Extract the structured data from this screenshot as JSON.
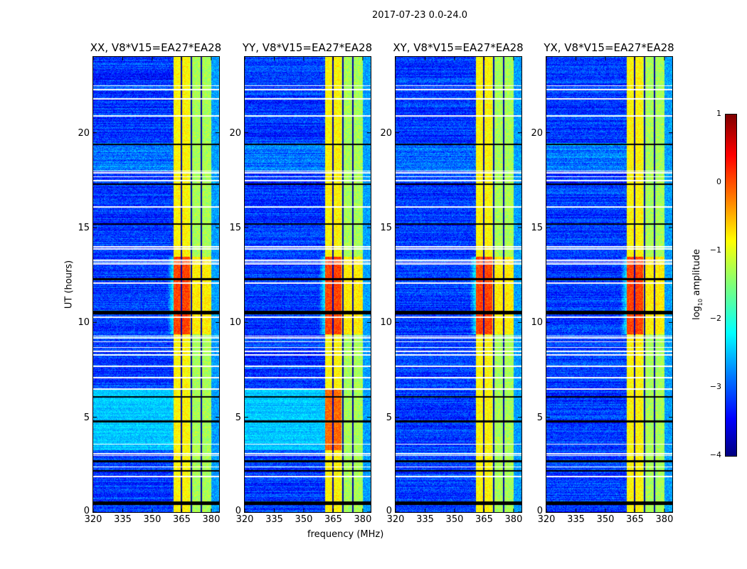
{
  "suptitle": "2017-07-23 0.0-24.0",
  "chart_data": {
    "type": "heatmap",
    "xlabel": "frequency (MHz)",
    "ylabel": "UT (hours)",
    "xlim": [
      320,
      384
    ],
    "ylim": [
      0,
      24
    ],
    "xticks": [
      "320",
      "335",
      "350",
      "365",
      "380"
    ],
    "xtick_values": [
      320,
      335,
      350,
      365,
      380
    ],
    "yticks": [
      "0",
      "5",
      "10",
      "15",
      "20"
    ],
    "ytick_values": [
      0,
      5,
      10,
      15,
      20
    ],
    "panels": [
      {
        "title": "XX, V8*V15=EA27*EA28",
        "cross_pol": false
      },
      {
        "title": "YY, V8*V15=EA27*EA28",
        "cross_pol": false
      },
      {
        "title": "XY, V8*V15=EA27*EA28",
        "cross_pol": true
      },
      {
        "title": "YX, V8*V15=EA27*EA28",
        "cross_pol": true
      }
    ],
    "rfi_band_mhz": [
      360.5,
      380
    ],
    "rfi_gaps_mhz": [
      364.7,
      369.7,
      374.8
    ],
    "strong_rfi_hours": [
      9.4,
      13.5
    ],
    "flagged_white_hours": [
      22.5,
      22.3,
      21.8,
      20.9,
      18.0,
      17.9,
      17.7,
      17.5,
      16.1,
      14.0,
      13.9,
      13.3,
      13.2,
      13.1,
      12.1,
      10.3,
      9.3,
      9.2,
      9.0,
      8.7,
      8.5,
      8.3,
      7.7,
      7.1,
      6.5,
      3.6,
      3.1,
      3.0,
      2.4,
      1.9
    ],
    "zero_black_hours": [
      19.4,
      17.3,
      15.2,
      12.3,
      10.6,
      10.5,
      6.1,
      4.8,
      2.7,
      2.2,
      0.55,
      0.45
    ],
    "colorbar": {
      "label": "log10 amplitude",
      "label_main": "log",
      "label_sub": "10",
      "label_rest": " amplitude",
      "range": [
        -4,
        1
      ],
      "ticks": [
        "1",
        "0",
        "−1",
        "−2",
        "−3",
        "−4"
      ],
      "tick_values": [
        1,
        0,
        -1,
        -2,
        -3,
        -4
      ],
      "colormap": "jet"
    }
  }
}
